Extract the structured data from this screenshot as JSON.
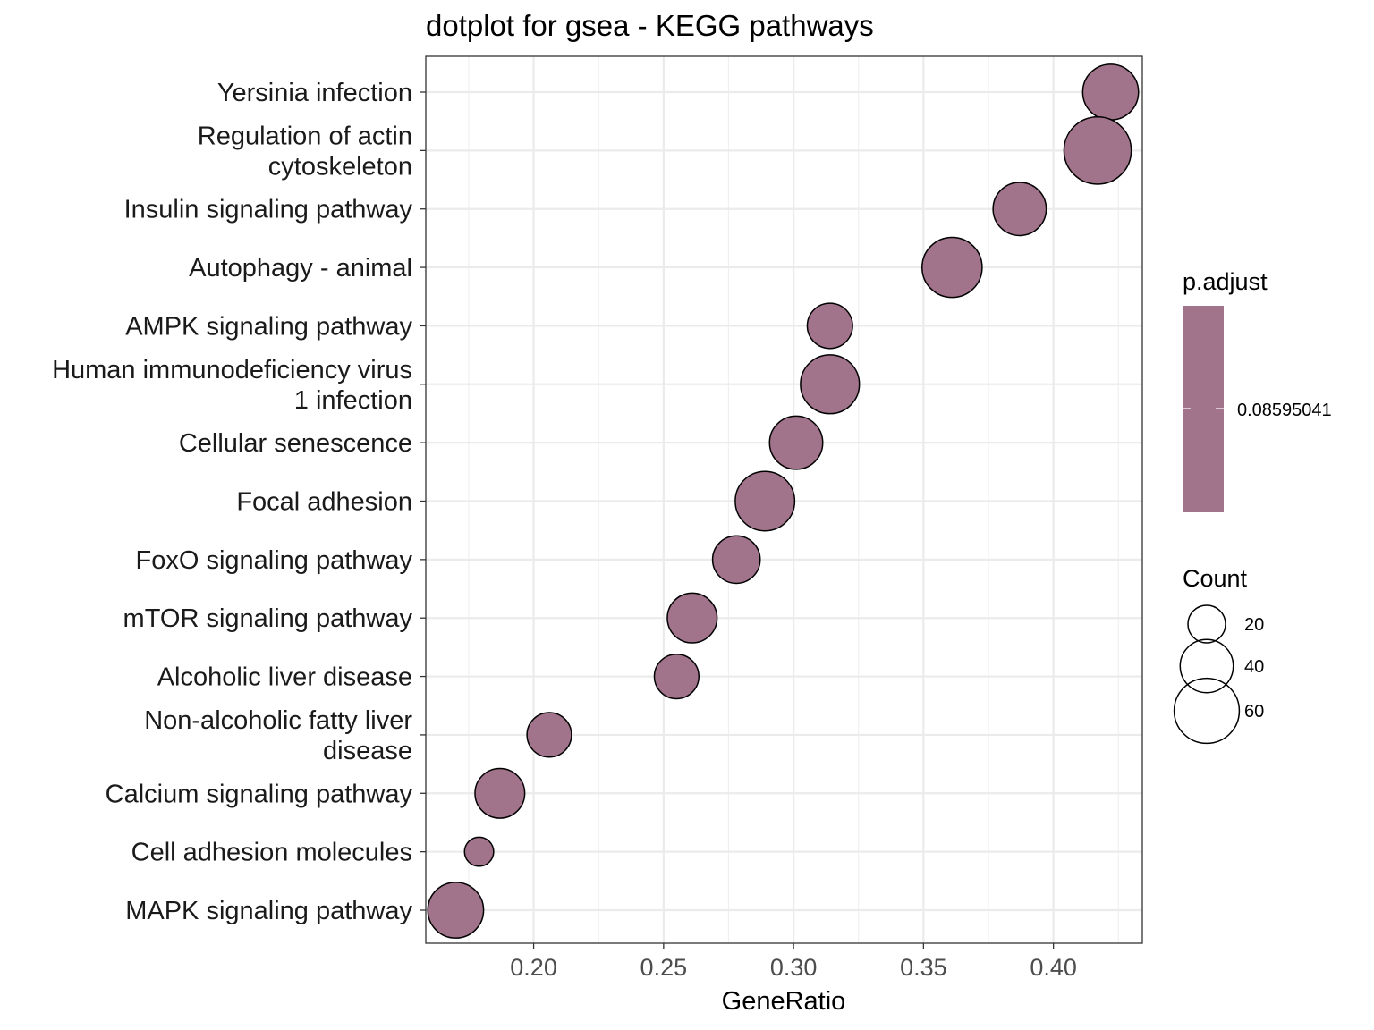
{
  "chart_data": {
    "type": "scatter",
    "title": "dotplot for gsea - KEGG pathways",
    "xlabel": "GeneRatio",
    "ylabel": "",
    "xlim": [
      0.1585,
      0.4342
    ],
    "xticks": [
      0.2,
      0.25,
      0.3,
      0.35,
      0.4
    ],
    "xtick_labels": [
      "0.20",
      "0.25",
      "0.30",
      "0.35",
      "0.40"
    ],
    "grid": true,
    "point_color": "#a2748c",
    "categories": [
      {
        "label": [
          "Yersinia infection"
        ],
        "x": 0.422,
        "count": 44
      },
      {
        "label": [
          "Regulation of actin",
          "cytoskeleton"
        ],
        "x": 0.417,
        "count": 64
      },
      {
        "label": [
          "Insulin signaling pathway"
        ],
        "x": 0.387,
        "count": 40
      },
      {
        "label": [
          "Autophagy - animal"
        ],
        "x": 0.361,
        "count": 51
      },
      {
        "label": [
          "AMPK signaling pathway"
        ],
        "x": 0.314,
        "count": 29
      },
      {
        "label": [
          "Human immunodeficiency virus",
          "1 infection"
        ],
        "x": 0.314,
        "count": 49
      },
      {
        "label": [
          "Cellular senescence"
        ],
        "x": 0.301,
        "count": 40
      },
      {
        "label": [
          "Focal adhesion"
        ],
        "x": 0.289,
        "count": 50
      },
      {
        "label": [
          "FoxO signaling pathway"
        ],
        "x": 0.278,
        "count": 32
      },
      {
        "label": [
          "mTOR signaling pathway"
        ],
        "x": 0.261,
        "count": 35
      },
      {
        "label": [
          "Alcoholic liver disease"
        ],
        "x": 0.255,
        "count": 28
      },
      {
        "label": [
          "Non-alcoholic fatty liver",
          "disease"
        ],
        "x": 0.206,
        "count": 28
      },
      {
        "label": [
          "Calcium signaling pathway"
        ],
        "x": 0.187,
        "count": 35
      },
      {
        "label": [
          "Cell adhesion molecules"
        ],
        "x": 0.179,
        "count": 12
      },
      {
        "label": [
          "MAPK signaling pathway"
        ],
        "x": 0.17,
        "count": 44
      }
    ],
    "legend": {
      "color": {
        "title": "p.adjust",
        "value_label": "0.08595041",
        "color": "#a2748c"
      },
      "size": {
        "title": "Count",
        "entries": [
          {
            "label": "20",
            "value": 20
          },
          {
            "label": "40",
            "value": 40
          },
          {
            "label": "60",
            "value": 60
          }
        ]
      }
    }
  }
}
